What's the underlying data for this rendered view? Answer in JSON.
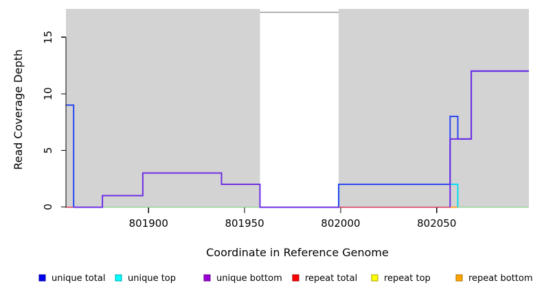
{
  "chart_data": {
    "type": "line",
    "subtype": "step-coverage",
    "title": "",
    "xlabel": "Coordinate in Reference Genome",
    "ylabel": "Read Coverage Depth",
    "xlim": [
      801857,
      802098
    ],
    "ylim": [
      0,
      17.5
    ],
    "xticks": [
      801900,
      801950,
      802000,
      802050
    ],
    "yticks": [
      0,
      5,
      10,
      15
    ],
    "grid": false,
    "panel_color": "#d3d3d3",
    "masked_regions": [
      {
        "x0": 801857,
        "x1": 801958
      },
      {
        "x0": 801999,
        "x1": 802098
      }
    ],
    "gap_region": {
      "x0": 801958,
      "x1": 801999,
      "top_edge_color": "#9a9a9a"
    },
    "zero_baseline": {
      "color": "#8fd38f",
      "width": 1.3,
      "x0": 801857,
      "x1": 802098
    },
    "series": [
      {
        "name": "unique total",
        "legend_color": "#0000ee",
        "legend_border": "#0000a0",
        "line_color": "#2946f0",
        "width": 2,
        "paths": [
          [
            [
              801857,
              9
            ],
            [
              801861,
              9
            ],
            [
              801861,
              0
            ]
          ],
          [
            [
              801999,
              0
            ],
            [
              801999,
              2
            ],
            [
              802057,
              2
            ],
            [
              802057,
              8
            ],
            [
              802061,
              8
            ],
            [
              802061,
              6
            ],
            [
              802068,
              6
            ],
            [
              802068,
              12
            ],
            [
              802098,
              12
            ]
          ]
        ]
      },
      {
        "name": "unique top",
        "legend_color": "#00ffff",
        "legend_border": "#00a6b0",
        "line_color": "#00dfee",
        "width": 2,
        "paths": [
          [
            [
              801999,
              0
            ],
            [
              801999,
              2
            ],
            [
              802061,
              2
            ],
            [
              802061,
              0
            ]
          ]
        ]
      },
      {
        "name": "unique bottom",
        "legend_color": "#9a00d3",
        "legend_border": "#66008c",
        "line_color": "#6d2ce5",
        "width": 2,
        "paths": [
          [
            [
              801861,
              0
            ],
            [
              801876,
              0
            ],
            [
              801876,
              1
            ],
            [
              801897,
              1
            ],
            [
              801897,
              3
            ],
            [
              801938,
              3
            ],
            [
              801938,
              2
            ],
            [
              801958,
              2
            ],
            [
              801958,
              0
            ],
            [
              801999,
              0
            ]
          ],
          [
            [
              802057,
              0
            ],
            [
              802057,
              6
            ],
            [
              802068,
              6
            ],
            [
              802068,
              12
            ],
            [
              802098,
              12
            ]
          ]
        ]
      },
      {
        "name": "repeat total",
        "legend_color": "#ff0000",
        "legend_border": "#a80000",
        "line_color": "#e0355f",
        "width": 1.4,
        "paths": [
          [
            [
              801857,
              0
            ],
            [
              801861,
              0
            ]
          ],
          [
            [
              801999,
              0
            ],
            [
              802057,
              0
            ]
          ]
        ]
      },
      {
        "name": "repeat top",
        "legend_color": "#ffff00",
        "legend_border": "#a8a000",
        "line_color": "#ffee00",
        "width": 1.4,
        "paths": []
      },
      {
        "name": "repeat bottom",
        "legend_color": "#ffa500",
        "legend_border": "#b06f00",
        "line_color": "#ff9d1e",
        "width": 1.8,
        "paths": [
          [
            [
              802057,
              0
            ],
            [
              802061,
              0
            ]
          ]
        ]
      }
    ]
  },
  "legend": {
    "items": [
      {
        "label": "unique total",
        "color": "#0000ee",
        "border": "#0000a0"
      },
      {
        "label": "unique top",
        "color": "#00ffff",
        "border": "#00a6b0"
      },
      {
        "label": "unique bottom",
        "color": "#9a00d3",
        "border": "#66008c"
      },
      {
        "label": "repeat total",
        "color": "#ff0000",
        "border": "#a80000"
      },
      {
        "label": "repeat top",
        "color": "#ffff00",
        "border": "#a8a000"
      },
      {
        "label": "repeat bottom",
        "color": "#ffa500",
        "border": "#b06f00"
      }
    ]
  }
}
